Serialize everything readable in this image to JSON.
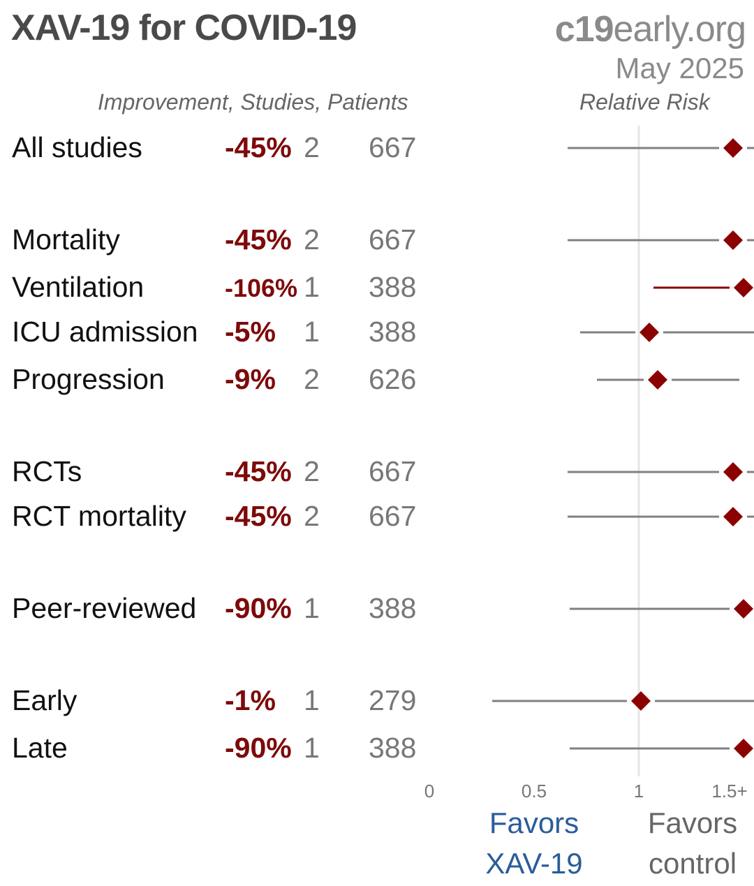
{
  "header": {
    "title": "XAV-19 for COVID-19",
    "brand_bold": "c19",
    "brand_rest": "early.org",
    "date": "May 2025",
    "col_headers": "Improvement, Studies, Patients",
    "rr_header": "Relative Risk"
  },
  "footer": {
    "favors_treatment_line1": "Favors",
    "favors_treatment_line2": "XAV-19",
    "favors_control_line1": "Favors",
    "favors_control_line2": "control"
  },
  "colors": {
    "point": "#8b0000",
    "ci_line": "#808080",
    "ci_line_highlight": "#8b0000",
    "reference_line": "#e6e6e6"
  },
  "chart_data": {
    "type": "forest",
    "x_ticks": [
      "0",
      "0.5",
      "1",
      "1.5+"
    ],
    "xlim": [
      0,
      1.5
    ],
    "reference_value": 1,
    "rows": [
      {
        "label": "All studies",
        "improvement": "-45%",
        "studies": "2",
        "patients": "667",
        "rr": 1.45,
        "ci_low": 0.66,
        "ci_high": 1.6,
        "highlight": false
      },
      {
        "label": "Mortality",
        "improvement": "-45%",
        "studies": "2",
        "patients": "667",
        "rr": 1.45,
        "ci_low": 0.66,
        "ci_high": 1.6,
        "highlight": false
      },
      {
        "label": "Ventilation",
        "improvement": "-106%",
        "studies": "1",
        "patients": "388",
        "rr": 1.5,
        "ci_low": 1.07,
        "ci_high": 1.6,
        "highlight": true
      },
      {
        "label": "ICU admission",
        "improvement": "-5%",
        "studies": "1",
        "patients": "388",
        "rr": 1.05,
        "ci_low": 0.72,
        "ci_high": 1.6,
        "highlight": false
      },
      {
        "label": "Progression",
        "improvement": "-9%",
        "studies": "2",
        "patients": "626",
        "rr": 1.09,
        "ci_low": 0.8,
        "ci_high": 1.48,
        "highlight": false
      },
      {
        "label": "RCTs",
        "improvement": "-45%",
        "studies": "2",
        "patients": "667",
        "rr": 1.45,
        "ci_low": 0.66,
        "ci_high": 1.6,
        "highlight": false
      },
      {
        "label": "RCT mortality",
        "improvement": "-45%",
        "studies": "2",
        "patients": "667",
        "rr": 1.45,
        "ci_low": 0.66,
        "ci_high": 1.6,
        "highlight": false
      },
      {
        "label": "Peer-reviewed",
        "improvement": "-90%",
        "studies": "1",
        "patients": "388",
        "rr": 1.5,
        "ci_low": 0.67,
        "ci_high": 1.6,
        "highlight": false
      },
      {
        "label": "Early",
        "improvement": "-1%",
        "studies": "1",
        "patients": "279",
        "rr": 1.01,
        "ci_low": 0.3,
        "ci_high": 1.6,
        "highlight": false
      },
      {
        "label": "Late",
        "improvement": "-90%",
        "studies": "1",
        "patients": "388",
        "rr": 1.5,
        "ci_low": 0.67,
        "ci_high": 1.6,
        "highlight": false
      }
    ]
  }
}
